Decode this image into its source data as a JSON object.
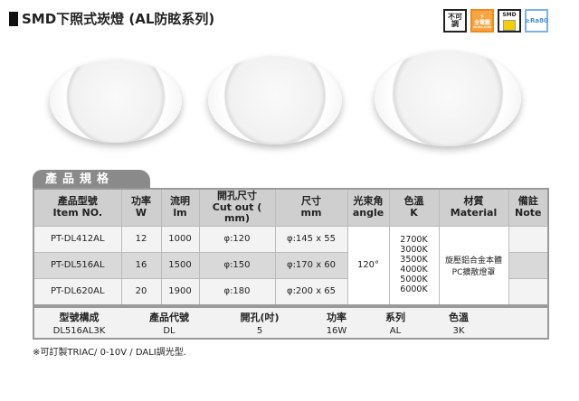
{
  "title": "SMD下照式崁燈 (AL防眩系列)",
  "badges": [
    {
      "icon": "non-dimmable-icon",
      "label": "不可調"
    },
    {
      "icon": "full-voltage-icon",
      "label": "全電壓",
      "sub": "AC100-240V"
    },
    {
      "icon": "smd-chip-icon",
      "label": "SMD"
    },
    {
      "icon": "cri-icon",
      "label": "≥Ra80"
    }
  ],
  "section_tab": "產品規格",
  "spec": {
    "headers": [
      [
        "產品型號",
        "Item NO."
      ],
      [
        "功率",
        "W"
      ],
      [
        "流明",
        "lm"
      ],
      [
        "開孔尺寸",
        "Cut out ( mm)"
      ],
      [
        "尺寸",
        "mm"
      ],
      [
        "光束角",
        "angle"
      ],
      [
        "色溫",
        "K"
      ],
      [
        "材質",
        "Material"
      ],
      [
        "備註",
        "Note"
      ]
    ],
    "rows": [
      [
        "PT-DL412AL",
        "12",
        "1000",
        "φ:120",
        "φ:145 x 55"
      ],
      [
        "PT-DL516AL",
        "16",
        "1500",
        "φ:150",
        "φ:170 x 60"
      ],
      [
        "PT-DL620AL",
        "20",
        "1900",
        "φ:180",
        "φ:200 x 65"
      ]
    ],
    "angle": "120°",
    "color_temps": [
      "2700K",
      "3000K",
      "3500K",
      "4000K",
      "5000K",
      "6000K"
    ],
    "material": [
      "旋壓鋁合金本體",
      "PC擴散燈罩"
    ]
  },
  "code": {
    "headers": [
      "型號構成",
      "產品代號",
      "開孔(吋)",
      "功率",
      "系列",
      "色溫"
    ],
    "values": [
      "DL516AL3K",
      "DL",
      "5",
      "16W",
      "AL",
      "3K"
    ]
  },
  "note": "※可訂製TRIAC/ 0-10V / DALI調光型."
}
